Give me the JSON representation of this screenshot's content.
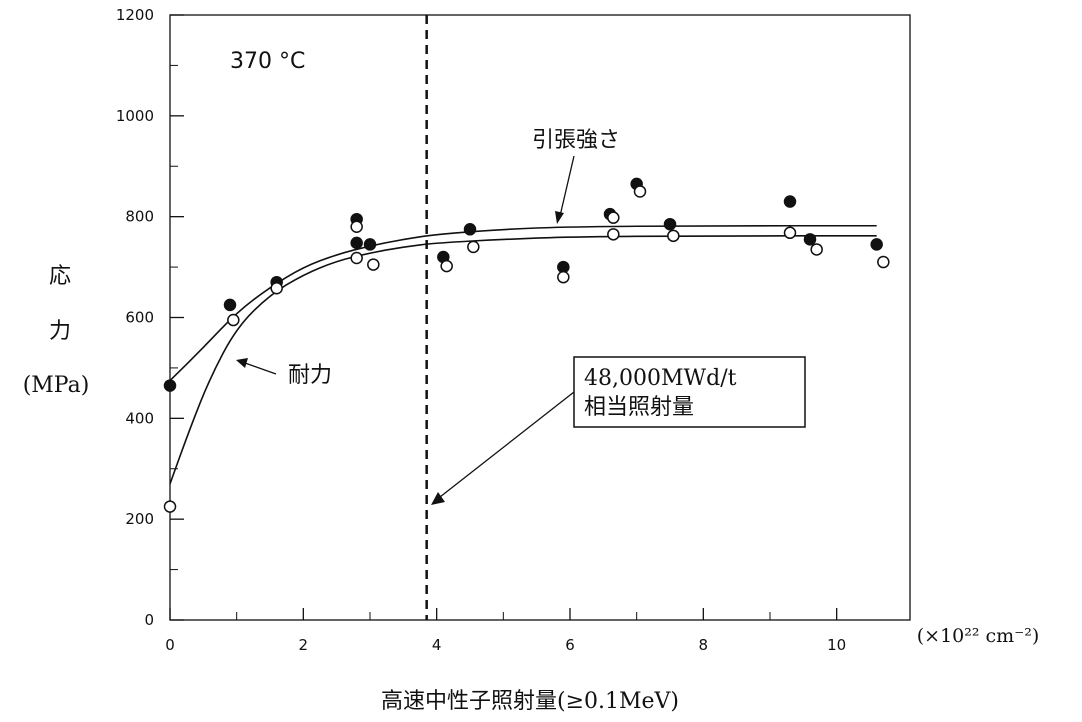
{
  "chart_data": {
    "type": "scatter",
    "temperature_label": "370 °C",
    "ylabel_lines": [
      "応",
      "力",
      "(MPa)"
    ],
    "xlabel": "高速中性子照射量(≥0.1MeV)",
    "x_unit": "(×10²² cm⁻²)",
    "xlim": [
      0,
      11.1
    ],
    "ylim": [
      0,
      1200
    ],
    "x_ticks": [
      "0",
      "2",
      "4",
      "6",
      "8",
      "10"
    ],
    "x_tick_values": [
      0,
      2,
      4,
      6,
      8,
      10
    ],
    "y_ticks": [
      "0",
      "200",
      "400",
      "600",
      "800",
      "1000",
      "1200"
    ],
    "y_tick_values": [
      0,
      200,
      400,
      600,
      800,
      1000,
      1200
    ],
    "x_minor_ticks": [
      1,
      3,
      5,
      7,
      9
    ],
    "y_minor_ticks": [
      100,
      300,
      500,
      700,
      900,
      1100
    ],
    "series": [
      {
        "name": "引張強さ",
        "marker": "filled",
        "points": [
          [
            0.0,
            465
          ],
          [
            0.9,
            625
          ],
          [
            1.6,
            670
          ],
          [
            2.8,
            795
          ],
          [
            2.8,
            748
          ],
          [
            3.0,
            745
          ],
          [
            4.1,
            720
          ],
          [
            4.5,
            775
          ],
          [
            5.9,
            700
          ],
          [
            6.6,
            805
          ],
          [
            7.0,
            865
          ],
          [
            7.5,
            785
          ],
          [
            9.3,
            830
          ],
          [
            9.6,
            755
          ],
          [
            10.6,
            745
          ]
        ],
        "curve": [
          [
            0.0,
            475
          ],
          [
            0.5,
            540
          ],
          [
            1.0,
            610
          ],
          [
            1.5,
            660
          ],
          [
            2.0,
            700
          ],
          [
            2.5,
            725
          ],
          [
            3.0,
            742
          ],
          [
            3.5,
            755
          ],
          [
            4.0,
            765
          ],
          [
            5.0,
            775
          ],
          [
            6.0,
            780
          ],
          [
            8.0,
            782
          ],
          [
            10.6,
            782
          ]
        ]
      },
      {
        "name": "耐力",
        "marker": "open",
        "points": [
          [
            0.0,
            225
          ],
          [
            0.95,
            595
          ],
          [
            1.6,
            658
          ],
          [
            2.8,
            780
          ],
          [
            2.8,
            718
          ],
          [
            3.05,
            705
          ],
          [
            4.15,
            702
          ],
          [
            4.55,
            740
          ],
          [
            5.9,
            680
          ],
          [
            6.65,
            798
          ],
          [
            6.65,
            765
          ],
          [
            7.05,
            850
          ],
          [
            7.55,
            762
          ],
          [
            9.3,
            768
          ],
          [
            9.7,
            735
          ],
          [
            10.7,
            710
          ]
        ],
        "curve": [
          [
            0.0,
            270
          ],
          [
            0.3,
            380
          ],
          [
            0.6,
            480
          ],
          [
            1.0,
            580
          ],
          [
            1.5,
            645
          ],
          [
            2.0,
            685
          ],
          [
            2.5,
            712
          ],
          [
            3.0,
            728
          ],
          [
            3.5,
            740
          ],
          [
            4.0,
            748
          ],
          [
            5.0,
            755
          ],
          [
            6.0,
            760
          ],
          [
            8.0,
            762
          ],
          [
            10.6,
            762
          ]
        ]
      }
    ],
    "reference_line": {
      "x": 3.85
    },
    "annotations": {
      "tensile": "引張強さ",
      "yield": "耐力",
      "box_lines": [
        "48,000MWd/t",
        "相当照射量"
      ]
    }
  }
}
